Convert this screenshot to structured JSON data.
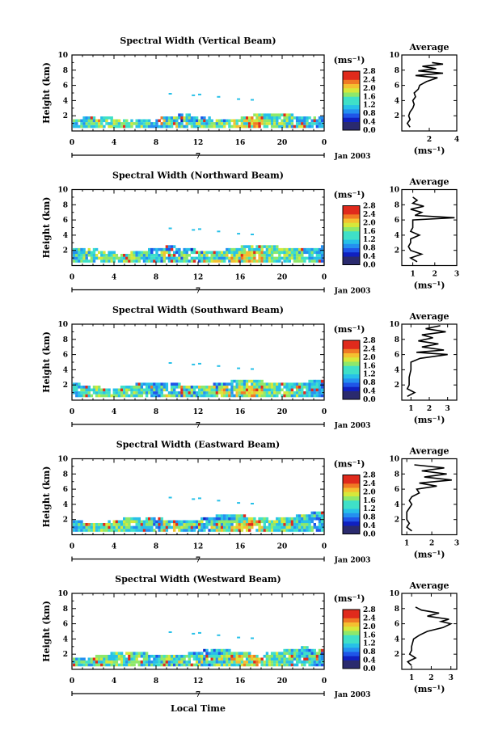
{
  "figure": {
    "month_label": "Jan 2003",
    "x_axis_label": "Local Time",
    "day_marker": "7",
    "y_axis_label": "Height (km)",
    "unit_label": "(ms⁻¹)",
    "avg_title": "Average"
  },
  "chart_data": [
    {
      "type": "heatmap",
      "title": "Spectral Width (Vertical Beam)",
      "xlabel": "",
      "ylabel": "Height (km)",
      "xlim": [
        0,
        24
      ],
      "ylim": [
        0,
        10
      ],
      "x_ticks": [
        "0",
        "4",
        "8",
        "12",
        "16",
        "20",
        "0"
      ],
      "y_ticks": [
        "2",
        "4",
        "6",
        "8",
        "10"
      ],
      "colorbar": {
        "label": "(ms⁻¹)",
        "ticks": [
          "0.0",
          "0.4",
          "0.8",
          "1.2",
          "1.6",
          "2.0",
          "2.4",
          "2.8"
        ],
        "range": [
          0,
          2.8
        ]
      },
      "layer_top_km": 2.2,
      "layer_bottom_km": 0.4,
      "average_profile": {
        "title": "Average",
        "xlabel": "(ms⁻¹)",
        "xlim": [
          0,
          4
        ],
        "x_ticks": [
          "2",
          "4"
        ],
        "y_ticks": [
          "2",
          "4",
          "6",
          "8",
          "10"
        ],
        "height_km": [
          0.5,
          1.0,
          1.5,
          2.0,
          2.5,
          3.0,
          3.5,
          4.0,
          4.5,
          5.0,
          5.5,
          6.0,
          6.5,
          7.0,
          7.3,
          7.6,
          7.9,
          8.2,
          8.5,
          8.8,
          9.0
        ],
        "width_ms": [
          0.6,
          0.4,
          0.6,
          0.5,
          0.6,
          0.8,
          0.9,
          0.8,
          1.0,
          0.9,
          1.2,
          1.3,
          1.8,
          2.6,
          1.0,
          3.0,
          1.2,
          2.5,
          1.5,
          3.0,
          2.2
        ]
      }
    },
    {
      "type": "heatmap",
      "title": "Spectral Width (Northward Beam)",
      "xlabel": "",
      "ylabel": "Height (km)",
      "xlim": [
        0,
        24
      ],
      "ylim": [
        0,
        10
      ],
      "x_ticks": [
        "0",
        "4",
        "8",
        "12",
        "16",
        "20",
        "0"
      ],
      "y_ticks": [
        "2",
        "4",
        "6",
        "8",
        "10"
      ],
      "colorbar": {
        "label": "(ms⁻¹)",
        "ticks": [
          "0.0",
          "0.4",
          "0.8",
          "1.2",
          "1.6",
          "2.0",
          "2.4",
          "2.8"
        ],
        "range": [
          0,
          2.8
        ]
      },
      "layer_top_km": 2.6,
      "layer_bottom_km": 0.4,
      "average_profile": {
        "title": "Average",
        "xlabel": "(ms⁻¹)",
        "xlim": [
          0.5,
          3
        ],
        "x_ticks": [
          "1",
          "2",
          "3"
        ],
        "y_ticks": [
          "2",
          "4",
          "6",
          "8",
          "10"
        ],
        "height_km": [
          0.5,
          1.0,
          1.5,
          2.0,
          2.5,
          3.0,
          3.5,
          4.0,
          4.5,
          5.0,
          5.5,
          6.0,
          6.3,
          6.6,
          7.0,
          7.4,
          7.8,
          8.2,
          8.6,
          9.0
        ],
        "width_ms": [
          1.2,
          0.9,
          1.4,
          0.9,
          0.8,
          0.9,
          0.9,
          1.3,
          0.9,
          1.0,
          1.0,
          1.0,
          2.9,
          1.1,
          1.4,
          0.9,
          1.5,
          1.0,
          1.2,
          1.0
        ]
      }
    },
    {
      "type": "heatmap",
      "title": "Spectral Width (Southward Beam)",
      "xlabel": "",
      "ylabel": "Height (km)",
      "xlim": [
        0,
        24
      ],
      "ylim": [
        0,
        10
      ],
      "x_ticks": [
        "0",
        "4",
        "8",
        "12",
        "16",
        "20",
        "0"
      ],
      "y_ticks": [
        "2",
        "4",
        "6",
        "8",
        "10"
      ],
      "colorbar": {
        "label": "(ms⁻¹)",
        "ticks": [
          "0.0",
          "0.4",
          "0.8",
          "1.2",
          "1.6",
          "2.0",
          "2.4",
          "2.8"
        ],
        "range": [
          0,
          2.8
        ]
      },
      "layer_top_km": 2.6,
      "layer_bottom_km": 0.4,
      "average_profile": {
        "title": "Average",
        "xlabel": "(ms⁻¹)",
        "xlim": [
          0.5,
          3.5
        ],
        "x_ticks": [
          "1",
          "2",
          "3"
        ],
        "y_ticks": [
          "2",
          "4",
          "6",
          "8",
          "10"
        ],
        "height_km": [
          0.5,
          1.0,
          1.5,
          2.0,
          2.5,
          3.0,
          4.0,
          5.0,
          5.5,
          6.0,
          6.3,
          6.6,
          7.0,
          7.4,
          7.8,
          8.2,
          8.6,
          9.0,
          9.4,
          9.8
        ],
        "width_ms": [
          0.8,
          1.2,
          0.8,
          0.9,
          0.9,
          0.9,
          1.0,
          1.0,
          1.5,
          3.0,
          1.3,
          2.8,
          1.6,
          2.5,
          1.4,
          2.2,
          1.6,
          2.9,
          1.8,
          2.6
        ]
      }
    },
    {
      "type": "heatmap",
      "title": "Spectral Width (Eastward Beam)",
      "xlabel": "",
      "ylabel": "Height (km)",
      "xlim": [
        0,
        24
      ],
      "ylim": [
        0,
        10
      ],
      "x_ticks": [
        "0",
        "4",
        "8",
        "12",
        "16",
        "20",
        "0"
      ],
      "y_ticks": [
        "2",
        "4",
        "6",
        "8",
        "10"
      ],
      "colorbar": {
        "label": "(ms⁻¹)",
        "ticks": [
          "0.0",
          "0.4",
          "0.8",
          "1.2",
          "1.6",
          "2.0",
          "2.4",
          "2.8"
        ],
        "range": [
          0,
          2.8
        ]
      },
      "layer_top_km": 2.6,
      "layer_bottom_km": 0.4,
      "average_profile": {
        "title": "Average",
        "xlabel": "(ms⁻¹)",
        "xlim": [
          0.8,
          3
        ],
        "x_ticks": [
          "1",
          "2",
          "3"
        ],
        "y_ticks": [
          "2",
          "4",
          "6",
          "8",
          "10"
        ],
        "height_km": [
          0.5,
          1.0,
          1.5,
          2.0,
          2.5,
          3.0,
          4.0,
          4.5,
          5.0,
          5.5,
          6.0,
          6.4,
          6.8,
          7.2,
          7.6,
          8.0,
          8.4,
          8.8,
          9.2
        ],
        "width_ms": [
          1.2,
          1.0,
          1.1,
          1.0,
          1.0,
          1.0,
          1.2,
          1.1,
          1.2,
          1.5,
          1.4,
          2.2,
          1.5,
          2.8,
          1.7,
          2.6,
          1.6,
          2.5,
          1.3
        ]
      }
    },
    {
      "type": "heatmap",
      "title": "Spectral Width (Westward Beam)",
      "xlabel": "Local Time",
      "ylabel": "Height (km)",
      "xlim": [
        0,
        24
      ],
      "ylim": [
        0,
        10
      ],
      "x_ticks": [
        "0",
        "4",
        "8",
        "12",
        "16",
        "20",
        "0"
      ],
      "y_ticks": [
        "2",
        "4",
        "6",
        "8",
        "10"
      ],
      "colorbar": {
        "label": "(ms⁻¹)",
        "ticks": [
          "0.0",
          "0.4",
          "0.8",
          "1.2",
          "1.6",
          "2.0",
          "2.4",
          "2.8"
        ],
        "range": [
          0,
          2.8
        ]
      },
      "layer_top_km": 2.6,
      "layer_bottom_km": 0.4,
      "average_profile": {
        "title": "Average",
        "xlabel": "(ms⁻¹)",
        "xlim": [
          0.5,
          3.3
        ],
        "x_ticks": [
          "1",
          "2",
          "3"
        ],
        "y_ticks": [
          "2",
          "4",
          "6",
          "8",
          "10"
        ],
        "height_km": [
          0.5,
          1.0,
          1.5,
          2.0,
          2.5,
          3.0,
          4.0,
          4.5,
          5.0,
          5.5,
          6.0,
          6.3,
          6.6,
          7.0,
          7.4,
          7.8,
          8.2
        ],
        "width_ms": [
          1.0,
          0.8,
          1.2,
          0.9,
          1.0,
          1.0,
          1.1,
          1.4,
          1.8,
          2.6,
          3.0,
          2.5,
          2.9,
          1.8,
          2.4,
          1.5,
          1.2
        ]
      }
    }
  ]
}
